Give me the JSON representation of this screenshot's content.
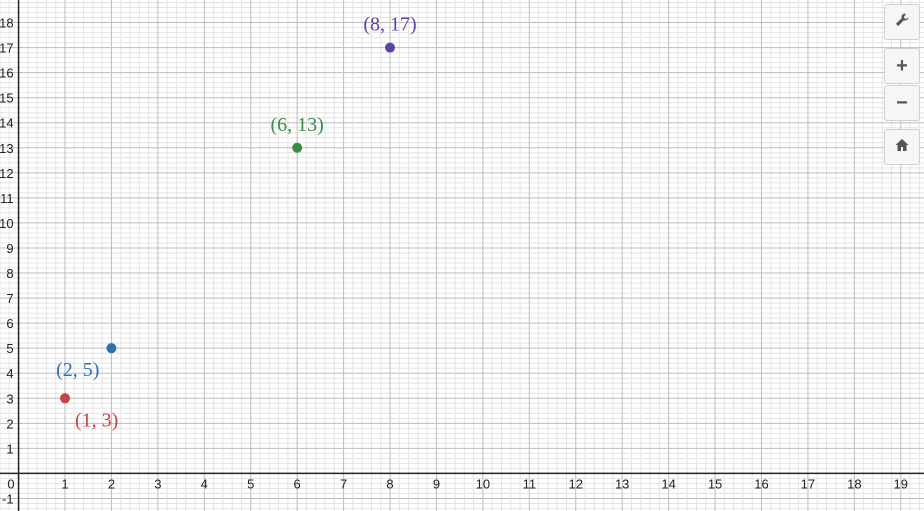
{
  "chart_data": {
    "type": "scatter",
    "xlim": [
      -0.4,
      19.5
    ],
    "ylim": [
      -1.5,
      18.9
    ],
    "x_ticks": [
      0,
      1,
      2,
      3,
      4,
      5,
      6,
      7,
      8,
      9,
      10,
      11,
      12,
      13,
      14,
      15,
      16,
      17,
      18,
      19
    ],
    "y_ticks": [
      -1,
      1,
      2,
      3,
      4,
      5,
      6,
      7,
      8,
      9,
      10,
      11,
      12,
      13,
      14,
      15,
      16,
      17,
      18
    ],
    "grid": true,
    "minor_grid_divisions": 5,
    "points": [
      {
        "x": 1,
        "y": 3,
        "label": "(1, 3)",
        "color": "#c74440",
        "label_pos": "below-right"
      },
      {
        "x": 2,
        "y": 5,
        "label": "(2, 5)",
        "color": "#2d70b3",
        "label_pos": "below-left"
      },
      {
        "x": 6,
        "y": 13,
        "label": "(6, 13)",
        "color": "#388c46",
        "label_pos": "above"
      },
      {
        "x": 8,
        "y": 17,
        "label": "(8, 17)",
        "color": "#6042a6",
        "label_pos": "above"
      }
    ]
  },
  "toolbar": {
    "settings_icon": "wrench-icon",
    "zoom_in_label": "+",
    "zoom_out_label": "−",
    "home_icon": "home-icon"
  }
}
